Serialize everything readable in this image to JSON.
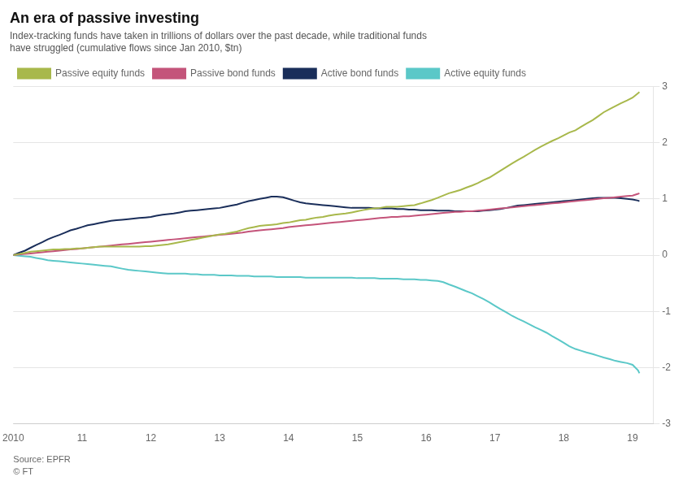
{
  "chart_data": {
    "type": "line",
    "title": "An era of passive investing",
    "subtitle": [
      "Index-tracking funds have taken in trillions of dollars over the past decade, while traditional funds",
      "have struggled (cumulative flows since Jan 2010, $tn)"
    ],
    "annotations": [
      "Source: EPFR",
      "© FT"
    ],
    "xlim": [
      2010.0,
      2019.3
    ],
    "ylim": [
      -3,
      3
    ],
    "yticks": [
      -3,
      -2,
      -1,
      0,
      1,
      2,
      3
    ],
    "xticks": [
      2010,
      {
        "value": 2011,
        "label": "11"
      },
      {
        "value": 2012,
        "label": "12"
      },
      {
        "value": 2013,
        "label": "13"
      },
      {
        "value": 2014,
        "label": "14"
      },
      {
        "value": 2015,
        "label": "15"
      },
      {
        "value": 2016,
        "label": "16"
      },
      {
        "value": 2017,
        "label": "17"
      },
      {
        "value": 2018,
        "label": "18"
      },
      {
        "value": 2019,
        "label": "19"
      }
    ],
    "grid": "y",
    "legend": "upper left",
    "x": [
      2010.0,
      2010.08,
      2010.17,
      2010.25,
      2010.33,
      2010.42,
      2010.5,
      2010.58,
      2010.67,
      2010.75,
      2010.83,
      2010.92,
      2011.0,
      2011.08,
      2011.17,
      2011.25,
      2011.33,
      2011.42,
      2011.5,
      2011.58,
      2011.67,
      2011.75,
      2011.83,
      2011.92,
      2012.0,
      2012.08,
      2012.17,
      2012.25,
      2012.33,
      2012.42,
      2012.5,
      2012.58,
      2012.67,
      2012.75,
      2012.83,
      2012.92,
      2013.0,
      2013.08,
      2013.17,
      2013.25,
      2013.33,
      2013.42,
      2013.5,
      2013.58,
      2013.67,
      2013.75,
      2013.83,
      2013.92,
      2014.0,
      2014.08,
      2014.17,
      2014.25,
      2014.33,
      2014.42,
      2014.5,
      2014.58,
      2014.67,
      2014.75,
      2014.83,
      2014.92,
      2015.0,
      2015.08,
      2015.17,
      2015.25,
      2015.33,
      2015.42,
      2015.5,
      2015.58,
      2015.67,
      2015.75,
      2015.83,
      2015.92,
      2016.0,
      2016.08,
      2016.17,
      2016.25,
      2016.33,
      2016.42,
      2016.5,
      2016.58,
      2016.67,
      2016.75,
      2016.83,
      2016.92,
      2017.0,
      2017.08,
      2017.17,
      2017.25,
      2017.33,
      2017.42,
      2017.5,
      2017.58,
      2017.67,
      2017.75,
      2017.83,
      2017.92,
      2018.0,
      2018.08,
      2018.17,
      2018.25,
      2018.33,
      2018.42,
      2018.5,
      2018.58,
      2018.67,
      2018.75,
      2018.83,
      2018.92,
      2019.0,
      2019.08,
      2019.1
    ],
    "series": [
      {
        "name": "Passive equity funds",
        "color": "#a8b84b",
        "values": [
          0.0,
          0.02,
          0.04,
          0.06,
          0.07,
          0.08,
          0.09,
          0.1,
          0.1,
          0.11,
          0.11,
          0.12,
          0.12,
          0.13,
          0.14,
          0.15,
          0.15,
          0.15,
          0.15,
          0.15,
          0.15,
          0.15,
          0.15,
          0.16,
          0.16,
          0.17,
          0.18,
          0.19,
          0.21,
          0.23,
          0.25,
          0.27,
          0.29,
          0.31,
          0.33,
          0.35,
          0.37,
          0.38,
          0.4,
          0.42,
          0.45,
          0.48,
          0.5,
          0.52,
          0.53,
          0.54,
          0.55,
          0.57,
          0.58,
          0.6,
          0.62,
          0.63,
          0.65,
          0.67,
          0.68,
          0.7,
          0.72,
          0.73,
          0.74,
          0.76,
          0.78,
          0.8,
          0.82,
          0.83,
          0.84,
          0.86,
          0.86,
          0.86,
          0.87,
          0.88,
          0.89,
          0.92,
          0.95,
          0.98,
          1.02,
          1.06,
          1.1,
          1.13,
          1.16,
          1.2,
          1.24,
          1.28,
          1.33,
          1.38,
          1.44,
          1.5,
          1.57,
          1.63,
          1.69,
          1.75,
          1.81,
          1.87,
          1.93,
          1.98,
          2.03,
          2.08,
          2.13,
          2.18,
          2.22,
          2.28,
          2.34,
          2.4,
          2.47,
          2.54,
          2.6,
          2.65,
          2.7,
          2.75,
          2.8,
          2.88,
          2.9
        ]
      },
      {
        "name": "Passive bond funds",
        "color": "#c4547a",
        "values": [
          0.0,
          0.01,
          0.02,
          0.03,
          0.04,
          0.05,
          0.06,
          0.07,
          0.08,
          0.09,
          0.1,
          0.11,
          0.12,
          0.13,
          0.14,
          0.15,
          0.16,
          0.17,
          0.18,
          0.19,
          0.2,
          0.21,
          0.22,
          0.23,
          0.24,
          0.25,
          0.26,
          0.27,
          0.28,
          0.29,
          0.3,
          0.31,
          0.32,
          0.33,
          0.34,
          0.35,
          0.36,
          0.37,
          0.38,
          0.39,
          0.4,
          0.42,
          0.43,
          0.44,
          0.45,
          0.46,
          0.47,
          0.48,
          0.5,
          0.51,
          0.52,
          0.53,
          0.54,
          0.55,
          0.56,
          0.57,
          0.58,
          0.59,
          0.6,
          0.61,
          0.62,
          0.63,
          0.64,
          0.65,
          0.66,
          0.67,
          0.68,
          0.68,
          0.69,
          0.69,
          0.7,
          0.71,
          0.72,
          0.73,
          0.74,
          0.75,
          0.76,
          0.77,
          0.77,
          0.78,
          0.78,
          0.79,
          0.8,
          0.81,
          0.82,
          0.83,
          0.84,
          0.85,
          0.86,
          0.87,
          0.88,
          0.89,
          0.9,
          0.91,
          0.92,
          0.93,
          0.94,
          0.95,
          0.96,
          0.97,
          0.98,
          0.99,
          1.0,
          1.01,
          1.02,
          1.03,
          1.04,
          1.05,
          1.06,
          1.09,
          1.1
        ]
      },
      {
        "name": "Active bond funds",
        "color": "#1a2e5a",
        "values": [
          0.0,
          0.04,
          0.08,
          0.13,
          0.18,
          0.23,
          0.28,
          0.32,
          0.36,
          0.4,
          0.44,
          0.47,
          0.5,
          0.53,
          0.55,
          0.57,
          0.59,
          0.61,
          0.62,
          0.63,
          0.64,
          0.65,
          0.66,
          0.67,
          0.68,
          0.7,
          0.72,
          0.73,
          0.74,
          0.76,
          0.78,
          0.79,
          0.8,
          0.81,
          0.82,
          0.83,
          0.84,
          0.86,
          0.88,
          0.9,
          0.93,
          0.96,
          0.98,
          1.0,
          1.02,
          1.04,
          1.04,
          1.03,
          1.0,
          0.97,
          0.94,
          0.92,
          0.91,
          0.9,
          0.89,
          0.88,
          0.87,
          0.86,
          0.85,
          0.84,
          0.84,
          0.84,
          0.84,
          0.83,
          0.83,
          0.83,
          0.83,
          0.82,
          0.82,
          0.81,
          0.81,
          0.8,
          0.8,
          0.8,
          0.79,
          0.79,
          0.79,
          0.78,
          0.78,
          0.78,
          0.78,
          0.78,
          0.79,
          0.8,
          0.81,
          0.82,
          0.84,
          0.86,
          0.88,
          0.89,
          0.9,
          0.91,
          0.92,
          0.93,
          0.94,
          0.95,
          0.96,
          0.97,
          0.98,
          0.99,
          1.0,
          1.01,
          1.02,
          1.02,
          1.02,
          1.02,
          1.01,
          1.0,
          0.99,
          0.97,
          0.96
        ]
      },
      {
        "name": "Active equity funds",
        "color": "#5bc8c8",
        "values": [
          0.0,
          -0.01,
          -0.02,
          -0.03,
          -0.05,
          -0.07,
          -0.09,
          -0.1,
          -0.11,
          -0.12,
          -0.13,
          -0.14,
          -0.15,
          -0.16,
          -0.17,
          -0.18,
          -0.19,
          -0.2,
          -0.22,
          -0.24,
          -0.26,
          -0.27,
          -0.28,
          -0.29,
          -0.3,
          -0.31,
          -0.32,
          -0.33,
          -0.33,
          -0.33,
          -0.33,
          -0.34,
          -0.34,
          -0.35,
          -0.35,
          -0.35,
          -0.36,
          -0.36,
          -0.36,
          -0.37,
          -0.37,
          -0.37,
          -0.38,
          -0.38,
          -0.38,
          -0.38,
          -0.39,
          -0.39,
          -0.39,
          -0.39,
          -0.39,
          -0.4,
          -0.4,
          -0.4,
          -0.4,
          -0.4,
          -0.4,
          -0.4,
          -0.4,
          -0.4,
          -0.41,
          -0.41,
          -0.41,
          -0.41,
          -0.42,
          -0.42,
          -0.42,
          -0.42,
          -0.43,
          -0.43,
          -0.43,
          -0.44,
          -0.44,
          -0.45,
          -0.46,
          -0.48,
          -0.52,
          -0.56,
          -0.6,
          -0.64,
          -0.68,
          -0.73,
          -0.78,
          -0.84,
          -0.9,
          -0.96,
          -1.02,
          -1.08,
          -1.13,
          -1.18,
          -1.23,
          -1.28,
          -1.33,
          -1.38,
          -1.44,
          -1.5,
          -1.56,
          -1.62,
          -1.67,
          -1.7,
          -1.73,
          -1.76,
          -1.79,
          -1.82,
          -1.85,
          -1.88,
          -1.9,
          -1.92,
          -1.95,
          -2.05,
          -2.1
        ]
      }
    ]
  }
}
